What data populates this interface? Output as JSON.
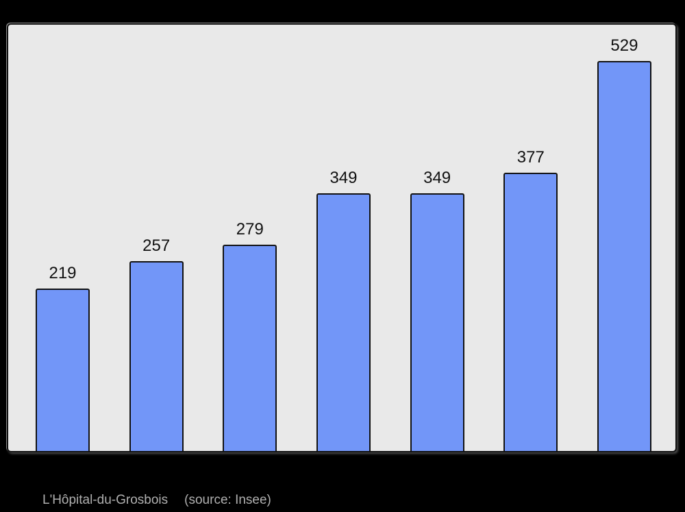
{
  "page": {
    "background": "#000000"
  },
  "chart_data": {
    "type": "bar",
    "values": [
      219,
      257,
      279,
      349,
      349,
      377,
      529
    ],
    "categories": [
      "",
      "",
      "",
      "",
      "",
      "",
      ""
    ],
    "title": "",
    "xlabel": "",
    "ylabel": "",
    "ylim": [
      0,
      580
    ],
    "grid": false,
    "legend": false,
    "value_labels_shown": true,
    "bar_fill_color": "#7296f8",
    "bar_border_color": "#111111",
    "plot_background_color": "#e9e9e9",
    "value_label_color": "#111111"
  },
  "caption": {
    "place": "L'Hôpital-du-Grosbois",
    "source": "(source: Insee)",
    "color": "#b0b0b0"
  }
}
